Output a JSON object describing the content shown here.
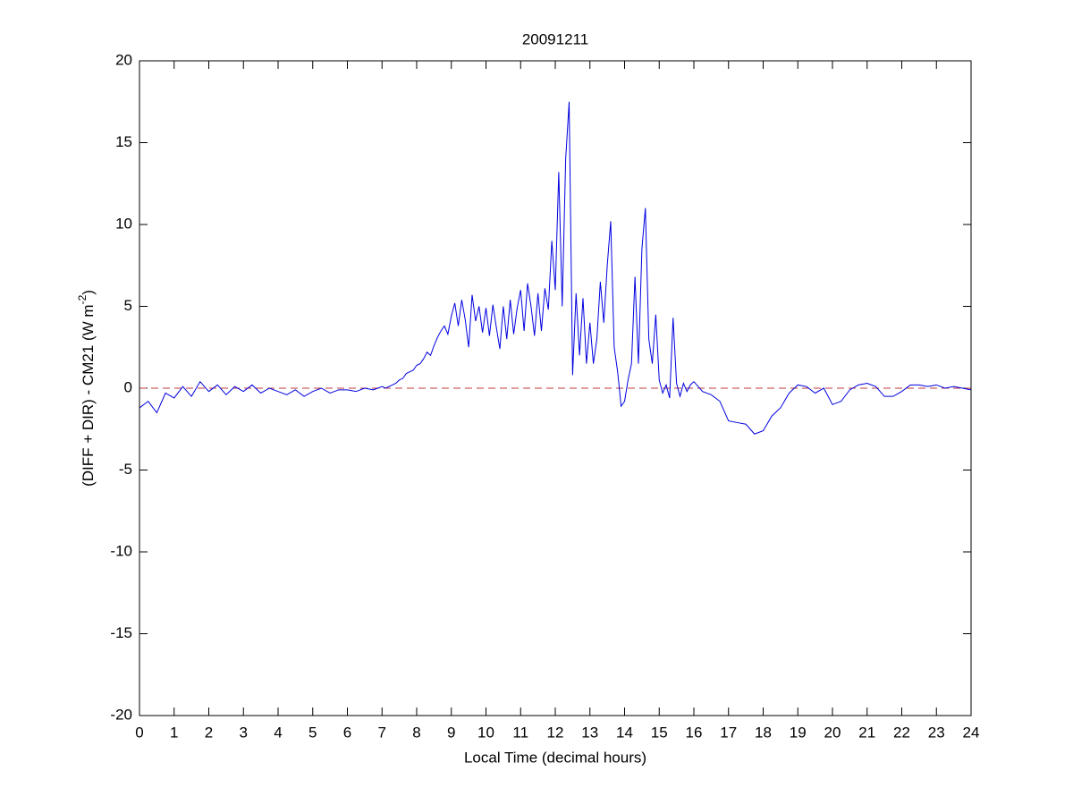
{
  "chart_data": {
    "type": "line",
    "title": "20091211",
    "xlabel": "Local Time (decimal hours)",
    "ylabel": "(DIFF + DIR) - CM21 (W m",
    "ylabel_sup": "-2",
    "ylabel_end": ")",
    "xlim": [
      0,
      24
    ],
    "xticks": [
      0,
      1,
      2,
      3,
      4,
      5,
      6,
      7,
      8,
      9,
      10,
      11,
      12,
      13,
      14,
      15,
      16,
      17,
      18,
      19,
      20,
      21,
      22,
      23,
      24
    ],
    "ylim": [
      -20,
      20
    ],
    "yticks": [
      -20,
      -15,
      -10,
      -5,
      0,
      5,
      10,
      15,
      20
    ],
    "reference_line": 0,
    "reference_color": "#c0393b",
    "series": [
      {
        "color": "#0000e0",
        "x": [
          0,
          0.25,
          0.5,
          0.75,
          1,
          1.25,
          1.5,
          1.75,
          2,
          2.25,
          2.5,
          2.75,
          3,
          3.25,
          3.5,
          3.75,
          4,
          4.25,
          4.5,
          4.75,
          5,
          5.25,
          5.5,
          5.75,
          6,
          6.25,
          6.5,
          6.75,
          7,
          7.1,
          7.2,
          7.3,
          7.4,
          7.5,
          7.6,
          7.7,
          7.8,
          7.9,
          8.0,
          8.1,
          8.2,
          8.3,
          8.4,
          8.5,
          8.6,
          8.7,
          8.8,
          8.9,
          9.0,
          9.1,
          9.2,
          9.3,
          9.4,
          9.5,
          9.6,
          9.7,
          9.8,
          9.9,
          10.0,
          10.1,
          10.2,
          10.3,
          10.4,
          10.5,
          10.6,
          10.7,
          10.8,
          10.9,
          11.0,
          11.1,
          11.2,
          11.3,
          11.4,
          11.5,
          11.6,
          11.7,
          11.8,
          11.9,
          12.0,
          12.1,
          12.2,
          12.3,
          12.4,
          12.5,
          12.6,
          12.7,
          12.8,
          12.9,
          13.0,
          13.1,
          13.2,
          13.3,
          13.4,
          13.5,
          13.6,
          13.7,
          13.8,
          13.9,
          14.0,
          14.1,
          14.2,
          14.3,
          14.4,
          14.5,
          14.6,
          14.7,
          14.8,
          14.9,
          15.0,
          15.1,
          15.2,
          15.3,
          15.4,
          15.5,
          15.6,
          15.7,
          15.8,
          15.9,
          16,
          16.25,
          16.5,
          16.75,
          17,
          17.25,
          17.5,
          17.75,
          18,
          18.25,
          18.5,
          18.75,
          19,
          19.25,
          19.5,
          19.75,
          20,
          20.25,
          20.5,
          20.75,
          21,
          21.25,
          21.5,
          21.75,
          22,
          22.25,
          22.5,
          22.75,
          23,
          23.25,
          23.5,
          23.75,
          24
        ],
        "values": [
          -1.2,
          -0.8,
          -1.5,
          -0.3,
          -0.6,
          0.1,
          -0.5,
          0.4,
          -0.2,
          0.2,
          -0.4,
          0.1,
          -0.2,
          0.2,
          -0.3,
          0,
          -0.2,
          -0.4,
          -0.1,
          -0.5,
          -0.2,
          0,
          -0.3,
          -0.1,
          -0.1,
          -0.2,
          0,
          -0.1,
          0.1,
          0,
          0.1,
          0.2,
          0.3,
          0.5,
          0.6,
          0.9,
          1.0,
          1.1,
          1.4,
          1.5,
          1.8,
          2.2,
          2.0,
          2.6,
          3.1,
          3.5,
          3.8,
          3.3,
          4.4,
          5.2,
          3.8,
          5.4,
          4.2,
          2.5,
          5.7,
          4.1,
          5.0,
          3.4,
          4.9,
          3.2,
          5.1,
          3.7,
          2.4,
          5.0,
          3.0,
          5.4,
          3.3,
          4.9,
          6.0,
          3.5,
          6.4,
          5.0,
          3.2,
          5.8,
          3.5,
          6.1,
          4.8,
          9.0,
          6.0,
          13.2,
          5.0,
          14.0,
          17.5,
          0.8,
          5.8,
          2.0,
          5.5,
          1.5,
          4.0,
          1.5,
          3.0,
          6.5,
          4.0,
          7.5,
          10.2,
          2.5,
          1.0,
          -1.1,
          -0.8,
          0.5,
          1.5,
          6.8,
          1.5,
          8.5,
          11.0,
          3.0,
          1.5,
          4.5,
          0.5,
          -0.3,
          0.2,
          -0.6,
          4.3,
          0.3,
          -0.5,
          0.3,
          -0.2,
          0.2,
          0.4,
          -0.2,
          -0.4,
          -0.8,
          -2.0,
          -2.1,
          -2.2,
          -2.8,
          -2.6,
          -1.7,
          -1.2,
          -0.3,
          0.2,
          0.1,
          -0.3,
          0.0,
          -1.0,
          -0.8,
          -0.1,
          0.2,
          0.3,
          0.1,
          -0.5,
          -0.5,
          -0.2,
          0.2,
          0.2,
          0.1,
          0.2,
          0.0,
          0.1,
          0.0,
          -0.1
        ]
      }
    ]
  }
}
